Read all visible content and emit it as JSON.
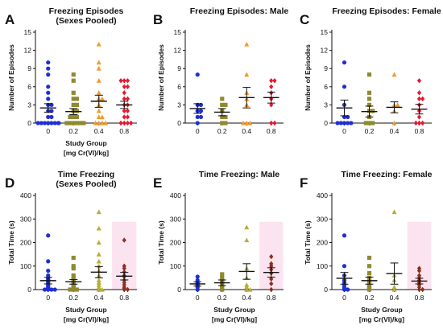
{
  "figure": {
    "group_colors": [
      "#1f2fd4",
      "#8f8a32",
      "#f29a2e",
      "#e8182f"
    ],
    "alt_colors": [
      "#1f2fd4",
      "#8f8a32",
      "#b8ad3a",
      "#8b2f1e"
    ]
  },
  "chart_data": [
    {
      "letter": "A",
      "type": "scatter",
      "title": "Freezing Episodes",
      "subtitle": "(Sexes Pooled)",
      "ylabel": "Number of Episodes",
      "xlabel": "Study Group",
      "xlabel2": "[mg Cr(VI)/kg]",
      "categories": [
        "0",
        "0.2",
        "0.4",
        "0.8"
      ],
      "yticks": [
        "0",
        "3",
        "6",
        "9",
        "12",
        "15"
      ],
      "ylim": [
        0,
        15
      ],
      "markers": [
        "circle",
        "square",
        "triangle",
        "diamond"
      ],
      "palette": "group_colors",
      "shaded": false,
      "means": [
        2.5,
        1.9,
        3.6,
        3.0
      ],
      "sem": [
        0.7,
        0.5,
        1.0,
        0.6
      ],
      "values": [
        [
          0,
          0,
          0,
          0,
          0,
          0,
          0,
          0,
          1,
          1,
          2,
          2,
          3,
          3,
          4,
          5,
          6,
          8,
          9,
          10
        ],
        [
          0,
          0,
          0,
          0,
          0,
          0,
          1,
          1,
          1,
          2,
          2,
          3,
          3,
          4,
          4,
          5,
          7,
          8
        ],
        [
          0,
          0,
          0,
          0,
          1,
          1,
          2,
          3,
          4,
          4,
          5,
          7,
          9,
          10,
          13
        ],
        [
          0,
          0,
          0,
          0,
          1,
          1,
          2,
          2,
          3,
          3,
          4,
          4,
          5,
          6,
          6,
          7,
          7,
          7
        ]
      ]
    },
    {
      "letter": "B",
      "type": "scatter",
      "title": "Freezing Episodes: Male",
      "subtitle": "",
      "ylabel": "Number of Episodes",
      "xlabel": "",
      "xlabel2": "",
      "categories": [
        "0",
        "0.2",
        "0.4",
        "0.8"
      ],
      "yticks": [
        "0",
        "3",
        "6",
        "9",
        "12",
        "15"
      ],
      "ylim": [
        0,
        15
      ],
      "markers": [
        "circle",
        "square",
        "triangle",
        "diamond"
      ],
      "palette": "group_colors",
      "shaded": false,
      "means": [
        2.4,
        1.8,
        4.2,
        4.2
      ],
      "sem": [
        0.8,
        0.6,
        1.7,
        0.9
      ],
      "values": [
        [
          0,
          1,
          1,
          2,
          2,
          3,
          3,
          8
        ],
        [
          0,
          0,
          1,
          1,
          2,
          3,
          3,
          4
        ],
        [
          0,
          0,
          0,
          3,
          4,
          5,
          8,
          13
        ],
        [
          0,
          0,
          3,
          4,
          5,
          6,
          7,
          7
        ]
      ]
    },
    {
      "letter": "C",
      "type": "scatter",
      "title": "Freezing Episodes: Female",
      "subtitle": "",
      "ylabel": "Number of Episodes",
      "xlabel": "",
      "xlabel2": "",
      "categories": [
        "0",
        "0.2",
        "0.4",
        "0.8"
      ],
      "yticks": [
        "0",
        "3",
        "6",
        "9",
        "12",
        "15"
      ],
      "ylim": [
        0,
        15
      ],
      "markers": [
        "circle",
        "square",
        "triangle",
        "diamond"
      ],
      "palette": "group_colors",
      "shaded": false,
      "means": [
        2.5,
        1.9,
        2.6,
        2.3
      ],
      "sem": [
        1.3,
        0.9,
        0.9,
        0.8
      ],
      "values": [
        [
          0,
          0,
          0,
          0,
          0,
          1,
          1,
          3,
          6,
          10
        ],
        [
          0,
          0,
          0,
          1,
          2,
          2,
          3,
          4,
          5,
          8
        ],
        [
          0,
          2,
          3,
          3,
          8
        ],
        [
          0,
          0,
          0,
          1,
          2,
          3,
          4,
          4,
          5,
          7
        ]
      ]
    },
    {
      "letter": "D",
      "type": "scatter",
      "title": "Time Freezing",
      "subtitle": "(Sexes Pooled)",
      "ylabel": "Total Time (s)",
      "xlabel": "Study Group",
      "xlabel2": "[mg Cr(VI)/kg]",
      "categories": [
        "0",
        "0.2",
        "0.4",
        "0.8"
      ],
      "yticks": [
        "0",
        "100",
        "200",
        "300",
        "400"
      ],
      "ylim": [
        0,
        400
      ],
      "markers": [
        "circle",
        "square",
        "triangle",
        "diamond"
      ],
      "palette": "alt_colors",
      "shaded": true,
      "means": [
        38,
        33,
        74,
        57
      ],
      "sem": [
        14,
        10,
        24,
        16
      ],
      "values": [
        [
          0,
          0,
          0,
          0,
          5,
          10,
          15,
          20,
          25,
          30,
          35,
          40,
          45,
          50,
          60,
          80,
          120,
          230
        ],
        [
          0,
          0,
          0,
          5,
          10,
          15,
          20,
          25,
          30,
          40,
          50,
          60,
          90,
          100,
          135
        ],
        [
          0,
          0,
          5,
          10,
          20,
          30,
          40,
          60,
          80,
          100,
          120,
          150,
          200,
          260,
          330
        ],
        [
          0,
          0,
          5,
          10,
          20,
          30,
          40,
          55,
          60,
          75,
          90,
          100,
          210
        ]
      ]
    },
    {
      "letter": "E",
      "type": "scatter",
      "title": "Time Freezing: Male",
      "subtitle": "",
      "ylabel": "Total Time (s)",
      "xlabel": "Study Group",
      "xlabel2": "[mg Cr(VI)/kg]",
      "categories": [
        "0",
        "0.2",
        "0.4",
        "0.8"
      ],
      "yticks": [
        "0",
        "100",
        "200",
        "300",
        "400"
      ],
      "ylim": [
        0,
        400
      ],
      "markers": [
        "circle",
        "square",
        "triangle",
        "diamond"
      ],
      "palette": "alt_colors",
      "shaded": true,
      "means": [
        24,
        29,
        77,
        73
      ],
      "sem": [
        9,
        12,
        33,
        20
      ],
      "values": [
        [
          0,
          10,
          15,
          20,
          25,
          30,
          40,
          55
        ],
        [
          0,
          10,
          20,
          30,
          35,
          40,
          50,
          65
        ],
        [
          0,
          0,
          10,
          20,
          50,
          90,
          210,
          265
        ],
        [
          0,
          25,
          45,
          70,
          85,
          100,
          110,
          140
        ]
      ]
    },
    {
      "letter": "F",
      "type": "scatter",
      "title": "Time Freezing: Female",
      "subtitle": "",
      "ylabel": "Total Time (s)",
      "xlabel": "Study Group",
      "xlabel2": "[mg Cr(VI)/kg]",
      "categories": [
        "0",
        "0.2",
        "0.4",
        "0.8"
      ],
      "yticks": [
        "0",
        "100",
        "200",
        "300",
        "400"
      ],
      "ylim": [
        0,
        400
      ],
      "markers": [
        "circle",
        "square",
        "triangle",
        "diamond"
      ],
      "palette": "alt_colors",
      "shaded": true,
      "means": [
        48,
        38,
        68,
        36
      ],
      "sem": [
        25,
        15,
        45,
        12
      ],
      "values": [
        [
          0,
          0,
          5,
          10,
          20,
          30,
          40,
          60,
          100,
          230
        ],
        [
          0,
          5,
          10,
          20,
          30,
          40,
          50,
          70,
          100,
          135
        ],
        [
          0,
          10,
          40,
          60,
          330
        ],
        [
          0,
          0,
          10,
          20,
          30,
          40,
          50,
          60,
          80,
          90
        ]
      ]
    }
  ]
}
